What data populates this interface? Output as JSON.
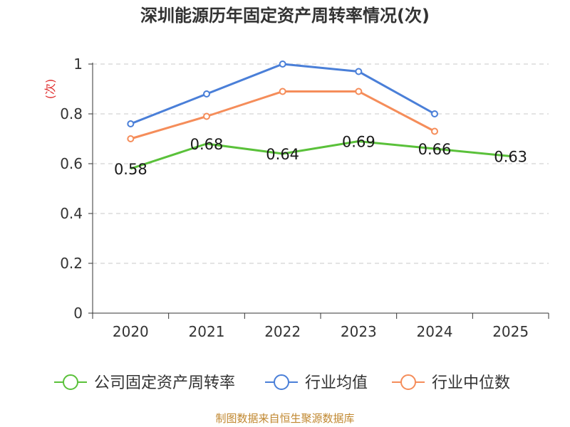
{
  "title": "深圳能源历年固定资产周转率情况(次)",
  "footer": "制图数据来自恒生聚源数据库",
  "chart_data": {
    "type": "line",
    "title": "深圳能源历年固定资产周转率情况(次)",
    "ylabel": "(次)",
    "xlabel": "",
    "categories": [
      "2020",
      "2021",
      "2022",
      "2023",
      "2024",
      "2025"
    ],
    "y_ticks": [
      "0",
      "0.2",
      "0.4",
      "0.6",
      "0.8",
      "1"
    ],
    "ylim": [
      0,
      1
    ],
    "grid": true,
    "legend_position": "bottom",
    "series": [
      {
        "name": "公司固定资产周转率",
        "color": "#5ac13a",
        "values": [
          0.58,
          0.68,
          0.64,
          0.69,
          0.66,
          0.63
        ],
        "labels": [
          "0.58",
          "0.68",
          "0.64",
          "0.69",
          "0.66",
          "0.63"
        ],
        "show_markers": false
      },
      {
        "name": "行业均值",
        "color": "#4a7fd8",
        "values": [
          0.76,
          0.88,
          1.0,
          0.97,
          0.8,
          null
        ],
        "show_markers": true
      },
      {
        "name": "行业中位数",
        "color": "#f58d5a",
        "values": [
          0.7,
          0.79,
          0.89,
          0.89,
          0.73,
          null
        ],
        "show_markers": true
      }
    ]
  }
}
